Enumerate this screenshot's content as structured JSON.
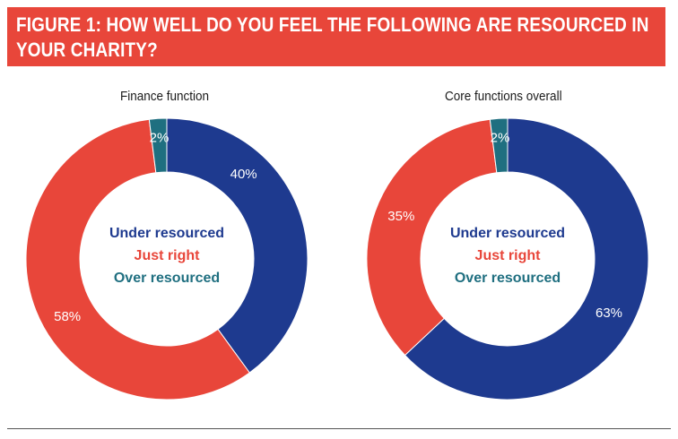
{
  "header": {
    "title": "FIGURE 1: HOW WELL DO YOU FEEL THE FOLLOWING ARE RESOURCED IN YOUR CHARITY?"
  },
  "colors": {
    "header_bg": "#e8463a",
    "under_resourced": "#1e3a8f",
    "just_right": "#e8463a",
    "over_resourced": "#1f6f80"
  },
  "chart_data": [
    {
      "type": "pie",
      "title": "Finance function",
      "categories": [
        "Under resourced",
        "Just right",
        "Over resourced"
      ],
      "values": [
        40,
        58,
        2
      ],
      "labels": [
        "40%",
        "58%",
        "2%"
      ],
      "legend": [
        "Under resourced",
        "Just right",
        "Over resourced"
      ],
      "legend_position": "center"
    },
    {
      "type": "pie",
      "title": "Core functions overall",
      "categories": [
        "Under resourced",
        "Just right",
        "Over resourced"
      ],
      "values": [
        63,
        35,
        2
      ],
      "labels": [
        "63%",
        "35%",
        "2%"
      ],
      "legend": [
        "Under resourced",
        "Just right",
        "Over resourced"
      ],
      "legend_position": "center"
    }
  ]
}
